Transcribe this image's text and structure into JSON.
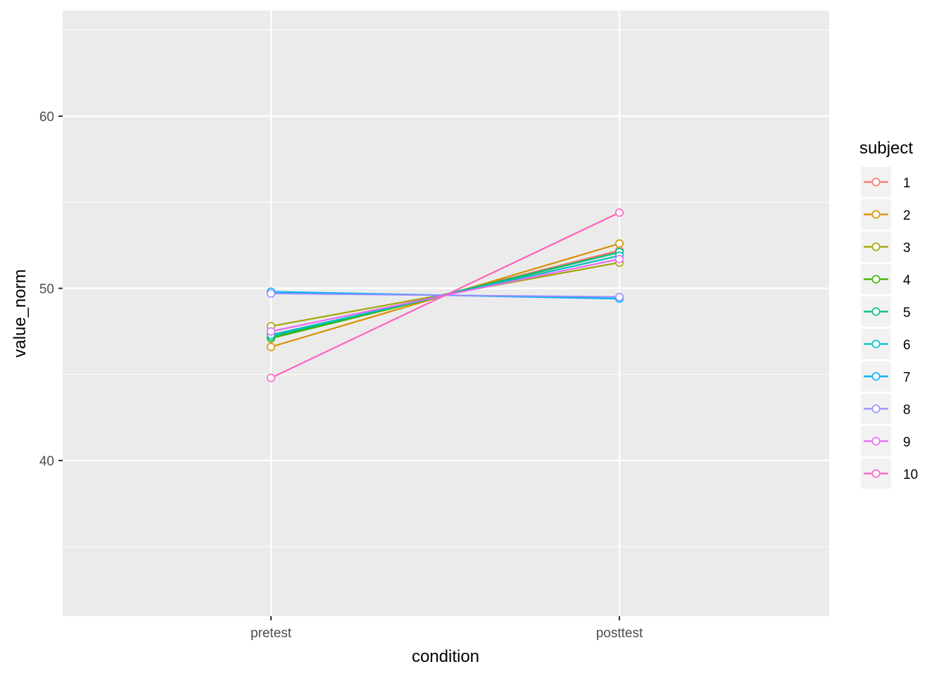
{
  "chart_data": {
    "type": "line",
    "title": "",
    "xlabel": "condition",
    "ylabel": "value_norm",
    "categories": [
      "pretest",
      "posttest"
    ],
    "ylim": [
      31,
      65.5
    ],
    "yticks": [
      40,
      50,
      60
    ],
    "ytick_labels": [
      "40",
      "50",
      "60"
    ],
    "grid": true,
    "legend": {
      "title": "subject",
      "position": "right"
    },
    "series": [
      {
        "name": "1",
        "color": "#F8766D",
        "values": [
          47.1,
          52.2
        ]
      },
      {
        "name": "2",
        "color": "#D89000",
        "values": [
          46.6,
          52.6
        ]
      },
      {
        "name": "3",
        "color": "#A3A500",
        "values": [
          47.8,
          51.5
        ]
      },
      {
        "name": "4",
        "color": "#39B600",
        "values": [
          47.1,
          52.1
        ]
      },
      {
        "name": "5",
        "color": "#00BF7D",
        "values": [
          47.2,
          52.1
        ]
      },
      {
        "name": "6",
        "color": "#00BFC4",
        "values": [
          47.3,
          51.9
        ]
      },
      {
        "name": "7",
        "color": "#00B0F6",
        "values": [
          49.8,
          49.4
        ]
      },
      {
        "name": "8",
        "color": "#9590FF",
        "values": [
          49.7,
          49.5
        ]
      },
      {
        "name": "9",
        "color": "#E76BF3",
        "values": [
          47.5,
          51.7
        ]
      },
      {
        "name": "10",
        "color": "#FF62BC",
        "values": [
          44.8,
          54.4
        ]
      }
    ]
  },
  "axes": {
    "x_title": "condition",
    "y_title": "value_norm",
    "x_ticks": [
      "pretest",
      "posttest"
    ],
    "y_ticks": [
      "40",
      "50",
      "60"
    ]
  },
  "legend": {
    "title": "subject",
    "items": [
      "1",
      "2",
      "3",
      "4",
      "5",
      "6",
      "7",
      "8",
      "9",
      "10"
    ]
  }
}
